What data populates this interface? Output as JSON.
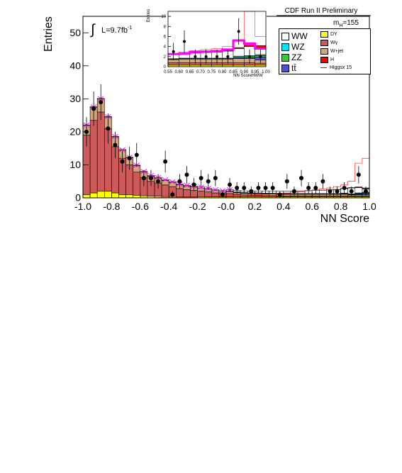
{
  "header": {
    "title": "CDF Run II Preliminary",
    "mass_label": "m",
    "mass_sub": "H",
    "mass_value": "=155"
  },
  "lumi": {
    "integral": "∫",
    "text": "L=9.7fb",
    "exp": "-1"
  },
  "colors": {
    "WW": "#ffffff",
    "WZ": "#00e0ff",
    "ZZ": "#33cc33",
    "ttbar": "#5050d0",
    "DY": "#ffff00",
    "Wgamma": "#cc5a5a",
    "Wjet": "#d2a679",
    "H": "#ff0000",
    "Higgs_line": "#ff0000",
    "signal_band": "#ff00ff",
    "data": "#000000"
  },
  "legend": {
    "left": [
      {
        "key": "WW",
        "label": "WW"
      },
      {
        "key": "WZ",
        "label": "WZ"
      },
      {
        "key": "ZZ",
        "label": "ZZ"
      },
      {
        "key": "ttbar",
        "label": "tt̄"
      }
    ],
    "right": [
      {
        "key": "DY",
        "label": "DY"
      },
      {
        "key": "Wgamma",
        "label": "Wγ"
      },
      {
        "key": "Wjet",
        "label": "W+jet"
      },
      {
        "key": "H",
        "label": "H"
      },
      {
        "key": "Higgs_line",
        "label": "Higgsx 15",
        "line": true
      }
    ]
  },
  "chart_data": [
    {
      "id": "main",
      "type": "bar",
      "stacked": true,
      "xlabel": "NN Score",
      "ylabel": "Entries",
      "xlim": [
        -1.0,
        1.0
      ],
      "ylim": [
        0,
        55
      ],
      "xticks": [
        "-1.0",
        "-0.8",
        "-0.6",
        "-0.4",
        "-0.2",
        "-0.0",
        "0.2",
        "0.4",
        "0.6",
        "0.8",
        "1.0"
      ],
      "yticks": [
        "0",
        "10",
        "20",
        "30",
        "40",
        "50"
      ],
      "bin_edges": [
        -1.0,
        -0.95,
        -0.9,
        -0.85,
        -0.8,
        -0.75,
        -0.7,
        -0.65,
        -0.6,
        -0.55,
        -0.5,
        -0.45,
        -0.4,
        -0.35,
        -0.3,
        -0.25,
        -0.2,
        -0.15,
        -0.1,
        -0.05,
        0.0,
        0.05,
        0.1,
        0.15,
        0.2,
        0.25,
        0.3,
        0.35,
        0.4,
        0.45,
        0.5,
        0.55,
        0.6,
        0.65,
        0.7,
        0.75,
        0.8,
        0.85,
        0.9,
        0.95,
        1.0
      ],
      "stack": [
        {
          "name": "DY",
          "values": [
            1,
            1.5,
            2,
            2,
            1.5,
            1,
            1,
            0.8,
            0.6,
            0.5,
            0.5,
            0.4,
            0.4,
            0.3,
            0.3,
            0.3,
            0.3,
            0.3,
            0.3,
            0.3,
            0.3,
            0.3,
            0.3,
            0.3,
            0.3,
            0.3,
            0.3,
            0.3,
            0.3,
            0.3,
            0.3,
            0.3,
            0.3,
            0.3,
            0.3,
            0.3,
            0.3,
            0.3,
            0.3,
            0.3
          ]
        },
        {
          "name": "Wgamma",
          "values": [
            18,
            22,
            24,
            19,
            14,
            11,
            9,
            7,
            5.5,
            4.5,
            4,
            3.5,
            3,
            2.5,
            2.2,
            2,
            1.8,
            1.5,
            1.2,
            1,
            1,
            0.8,
            0.6,
            0.5,
            0.5,
            0.4,
            0.4,
            0.3,
            0.3,
            0.3,
            0.3,
            0.3,
            0.3,
            0.3,
            0.3,
            0.3,
            0.3,
            0.2,
            0.2,
            0.2
          ]
        },
        {
          "name": "Wjet",
          "values": [
            3,
            4,
            4,
            3.5,
            3,
            2.5,
            2.2,
            2,
            1.8,
            1.6,
            1.5,
            1.4,
            1.3,
            1.2,
            1.1,
            1.0,
            0.9,
            0.8,
            0.7,
            0.6,
            0.6,
            0.5,
            0.5,
            0.5,
            0.5,
            0.5,
            0.5,
            0.5,
            0.5,
            0.5,
            0.5,
            0.5,
            0.5,
            0.5,
            0.5,
            0.5,
            0.5,
            0.4,
            0.4,
            0.4
          ]
        },
        {
          "name": "ttbar",
          "values": [
            0,
            0,
            0,
            0,
            0,
            0,
            0,
            0,
            0,
            0,
            0,
            0,
            0,
            0,
            0,
            0,
            0,
            0,
            0,
            0,
            0,
            0,
            0,
            0,
            0,
            0,
            0,
            0,
            0,
            0,
            0,
            0,
            0,
            0,
            0,
            0,
            0.1,
            0.1,
            0.2,
            0.4
          ]
        },
        {
          "name": "ZZ",
          "values": [
            0,
            0,
            0,
            0,
            0,
            0,
            0,
            0,
            0,
            0,
            0,
            0,
            0,
            0,
            0,
            0,
            0,
            0,
            0,
            0,
            0.1,
            0.1,
            0.1,
            0.1,
            0.1,
            0.1,
            0.1,
            0.1,
            0.1,
            0.1,
            0.1,
            0.1,
            0.1,
            0.1,
            0.1,
            0.1,
            0.1,
            0.1,
            0.2,
            0.2
          ]
        },
        {
          "name": "WZ",
          "values": [
            0,
            0,
            0,
            0,
            0,
            0,
            0,
            0,
            0,
            0,
            0,
            0,
            0,
            0,
            0,
            0,
            0,
            0,
            0,
            0,
            0.1,
            0.1,
            0.1,
            0.1,
            0.1,
            0.1,
            0.1,
            0.1,
            0.1,
            0.1,
            0.1,
            0.1,
            0.1,
            0.1,
            0.1,
            0.1,
            0.1,
            0.1,
            0.2,
            0.2
          ]
        },
        {
          "name": "WW",
          "values": [
            0.1,
            0.1,
            0.1,
            0.1,
            0.1,
            0.1,
            0.1,
            0.1,
            0.1,
            0.2,
            0.2,
            0.2,
            0.2,
            0.2,
            0.2,
            0.2,
            0.3,
            0.3,
            0.3,
            0.3,
            0.4,
            0.5,
            0.5,
            0.6,
            0.6,
            0.7,
            0.7,
            0.7,
            0.7,
            0.7,
            0.8,
            0.9,
            1.0,
            1.0,
            1.1,
            1.2,
            1.4,
            1.8,
            1.6,
            1.0
          ]
        },
        {
          "name": "H",
          "values": [
            0,
            0,
            0,
            0,
            0,
            0,
            0,
            0,
            0,
            0,
            0,
            0,
            0,
            0,
            0,
            0,
            0,
            0,
            0,
            0,
            0,
            0,
            0,
            0,
            0,
            0,
            0,
            0,
            0,
            0,
            0,
            0,
            0,
            0,
            0.05,
            0.05,
            0.1,
            0.1,
            0.2,
            0.3
          ]
        }
      ],
      "higgs_x15": [
        0,
        0,
        0,
        0,
        0,
        0,
        0,
        0,
        0,
        0,
        0.1,
        0.1,
        0.1,
        0.2,
        0.2,
        0.2,
        0.3,
        0.4,
        0.4,
        0.5,
        0.6,
        0.7,
        0.8,
        0.9,
        1.0,
        1.1,
        1.2,
        1.4,
        1.5,
        1.7,
        1.9,
        2.1,
        2.4,
        2.7,
        3.0,
        3.4,
        3.9,
        5.0,
        10.5,
        12.0
      ],
      "data": {
        "x": [
          -0.975,
          -0.925,
          -0.875,
          -0.825,
          -0.775,
          -0.725,
          -0.675,
          -0.625,
          -0.575,
          -0.525,
          -0.475,
          -0.425,
          -0.375,
          -0.325,
          -0.275,
          -0.225,
          -0.175,
          -0.125,
          -0.075,
          -0.025,
          0.025,
          0.075,
          0.125,
          0.175,
          0.225,
          0.275,
          0.325,
          0.375,
          0.425,
          0.475,
          0.525,
          0.575,
          0.625,
          0.675,
          0.725,
          0.775,
          0.825,
          0.875,
          0.925,
          0.975
        ],
        "y": [
          20,
          27,
          29,
          21,
          16,
          11,
          12,
          13,
          6,
          6,
          5,
          11,
          1,
          5,
          7,
          4,
          6,
          5,
          6,
          1,
          4,
          3,
          3,
          2,
          3,
          3,
          3,
          1,
          5,
          2,
          6,
          3,
          3,
          5,
          2,
          2,
          3,
          2,
          7,
          2
        ]
      }
    },
    {
      "id": "inset",
      "type": "bar",
      "stacked": true,
      "xlabel": "NN ScoreHWW",
      "ylabel": "Entries",
      "xlim": [
        0.55,
        1.0
      ],
      "ylim": [
        0,
        11
      ],
      "xticks": [
        "0.55",
        "0.60",
        "0.65",
        "0.70",
        "0.75",
        "0.80",
        "0.85",
        "0.90",
        "0.95",
        "1.00"
      ],
      "yticks": [
        "0",
        "2",
        "4",
        "6",
        "8",
        "10"
      ],
      "bin_edges": [
        0.55,
        0.6,
        0.65,
        0.7,
        0.75,
        0.8,
        0.85,
        0.9,
        0.95,
        1.0
      ],
      "stack": [
        {
          "name": "DY",
          "values": [
            0.3,
            0.3,
            0.3,
            0.3,
            0.3,
            0.3,
            0.3,
            0.3,
            0.3
          ]
        },
        {
          "name": "Wgamma",
          "values": [
            0.5,
            0.5,
            0.5,
            0.5,
            0.5,
            0.5,
            0.5,
            0.5,
            0.4
          ]
        },
        {
          "name": "Wjet",
          "values": [
            0.6,
            0.7,
            0.7,
            0.7,
            0.7,
            0.7,
            0.8,
            0.8,
            0.6
          ]
        },
        {
          "name": "ttbar",
          "values": [
            0,
            0,
            0,
            0,
            0,
            0,
            0.1,
            0.2,
            0.6
          ]
        },
        {
          "name": "ZZ",
          "values": [
            0.1,
            0.1,
            0.1,
            0.1,
            0.1,
            0.1,
            0.2,
            0.2,
            0.3
          ]
        },
        {
          "name": "WZ",
          "values": [
            0.1,
            0.1,
            0.1,
            0.1,
            0.1,
            0.1,
            0.2,
            0.2,
            0.2
          ]
        },
        {
          "name": "WW",
          "values": [
            0.8,
            0.9,
            1.0,
            1.1,
            1.2,
            1.4,
            1.5,
            1.8,
            1.4
          ]
        },
        {
          "name": "H",
          "values": [
            0,
            0,
            0.05,
            0.05,
            0.1,
            0.1,
            0.2,
            0.3,
            0.4
          ]
        }
      ],
      "higgs_x15": [
        2.6,
        2.9,
        3.2,
        3.4,
        3.6,
        4.0,
        5.4,
        11.0,
        6.0
      ],
      "signal_band": [
        2.5,
        2.6,
        2.9,
        3.0,
        3.1,
        3.4,
        5.2,
        4.6,
        3.6
      ],
      "data": {
        "x": [
          0.575,
          0.625,
          0.675,
          0.725,
          0.775,
          0.825,
          0.875,
          0.925,
          0.975
        ],
        "y": [
          3,
          5,
          2,
          2,
          2,
          2,
          7,
          2,
          2
        ]
      }
    }
  ]
}
